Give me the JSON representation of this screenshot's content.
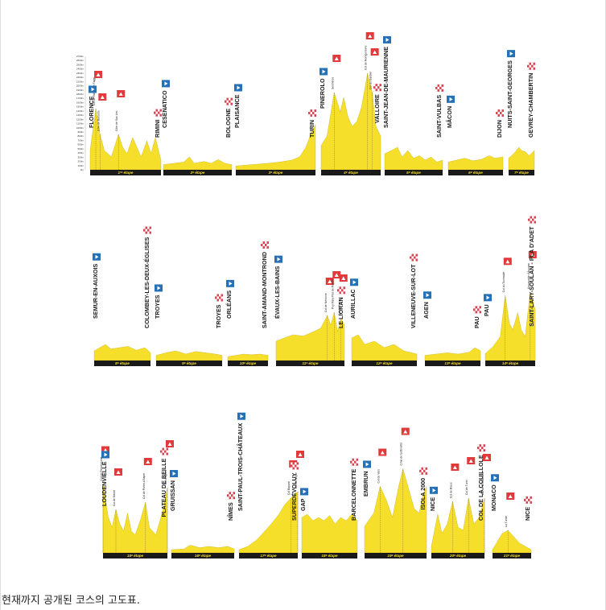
{
  "caption": "현재까지 공개된 코스의 고도표.",
  "y_axis_ticks": [
    "2700m",
    "2600m",
    "2500m",
    "2400m",
    "2300m",
    "2200m",
    "2100m",
    "2000m",
    "1900m",
    "1800m",
    "1700m",
    "1600m",
    "1500m",
    "1400m",
    "1300m",
    "1200m",
    "1100m",
    "1000m",
    "900m",
    "800m",
    "700m",
    "600m",
    "500m",
    "400m",
    "300m",
    "200m",
    "100m",
    "0m"
  ],
  "colors": {
    "profile": "#f6df2b",
    "bar": "#1a1a1a",
    "start_flag": "#2471b8",
    "finish_flag": "#d94452",
    "pass_flag": "#e03a3a"
  },
  "stages": [
    {
      "label": "1ʳᵉ étape",
      "start": "FLORENCE",
      "finish": "RIMINI",
      "passes": [
        "Col de Valico Tre Faggi",
        "Côte de Barbotto",
        "Côte de San Leo"
      ]
    },
    {
      "label": "2ᵉ étape",
      "start": "CESENATICO",
      "finish": "BOLOGNE",
      "passes": []
    },
    {
      "label": "3ᵉ étape",
      "start": "PLAISANCE",
      "finish": "TURIN",
      "passes": []
    },
    {
      "label": "4ᵉ étape",
      "start": "PINEROLO",
      "finish": "VALLOIRE",
      "passes": [
        "Sestrières",
        "Col de Montgenèvre",
        "Col du Galibier"
      ]
    },
    {
      "label": "5ᵉ étape",
      "start": "SAINT-JEAN-DE-MAURIENNE",
      "finish": "SAINT-VULBAS",
      "passes": []
    },
    {
      "label": "6ᵉ étape",
      "start": "MÂCON",
      "finish": "DIJON",
      "passes": []
    },
    {
      "label": "7ᵉ étape",
      "start": "NUITS-SAINT-GEORGES",
      "finish": "GEVREY-CHAMBERTIN",
      "passes": []
    },
    {
      "label": "8ᵉ étape",
      "start": "SEMUR-EN-AUXOIS",
      "finish": "COLOMBEY-LES-DEUX-ÉGLISES",
      "passes": []
    },
    {
      "label": "9ᵉ étape",
      "start": "TROYES",
      "finish": "TROYES",
      "passes": []
    },
    {
      "label": "10ᵉ étape",
      "start": "ORLÉANS",
      "finish": "SAINT-AMAND-MONTROND",
      "passes": []
    },
    {
      "label": "11ᵉ étape",
      "start": "ÉVAUX-LES-BAINS",
      "finish": "LE LIORAN",
      "passes": [
        "Col de Néronne",
        "Puy Mary Pas de Peyrol",
        "Col de Pertus"
      ]
    },
    {
      "label": "12ᵉ étape",
      "start": "AURILLAC",
      "finish": "VILLENEUVE-SUR-LOT",
      "passes": []
    },
    {
      "label": "13ᵉ étape",
      "start": "AGEN",
      "finish": "PAU",
      "passes": []
    },
    {
      "label": "14ᵉ étape",
      "start": "PAU",
      "finish": "SAINT-LARY-SOULAN - PLA D'ADET",
      "passes": [
        "Col du Tourmalet",
        "Hourquette d'Ancizan"
      ]
    },
    {
      "label": "15ᵉ étape",
      "start": "LOUDENVIELLE",
      "finish": "PLATEAU DE BEILLE",
      "passes": [
        "Col de Peyresourde",
        "Col de Menté",
        "Col de Portet-d'Aspet",
        "Col d'Agnes"
      ]
    },
    {
      "label": "16ᵉ étape",
      "start": "GRUISSAN",
      "finish": "NÎMES",
      "passes": []
    },
    {
      "label": "17ᵉ étape",
      "start": "SAINT-PAUL-TROIS-CHÂTEAUX",
      "finish": "SUPERDÉVOLUY",
      "passes": [
        "Col Bayard",
        "Col du Noyer"
      ]
    },
    {
      "label": "18ᵉ étape",
      "start": "GAP",
      "finish": "BARCELONNETTE",
      "passes": []
    },
    {
      "label": "19ᵉ étape",
      "start": "EMBRUN",
      "finish": "ISOLA 2000",
      "passes": [
        "Col de Vars",
        "Cime de la Bonette"
      ]
    },
    {
      "label": "20ᵉ étape",
      "start": "NICE",
      "finish": "COL DE LA COUILLOLE",
      "passes": [
        "Col de Braus",
        "Col de Turini",
        "Col de la Colmiane"
      ]
    },
    {
      "label": "21ᵉ étape",
      "start": "MONACO",
      "finish": "NICE",
      "passes": [
        "La Turbie"
      ]
    }
  ]
}
